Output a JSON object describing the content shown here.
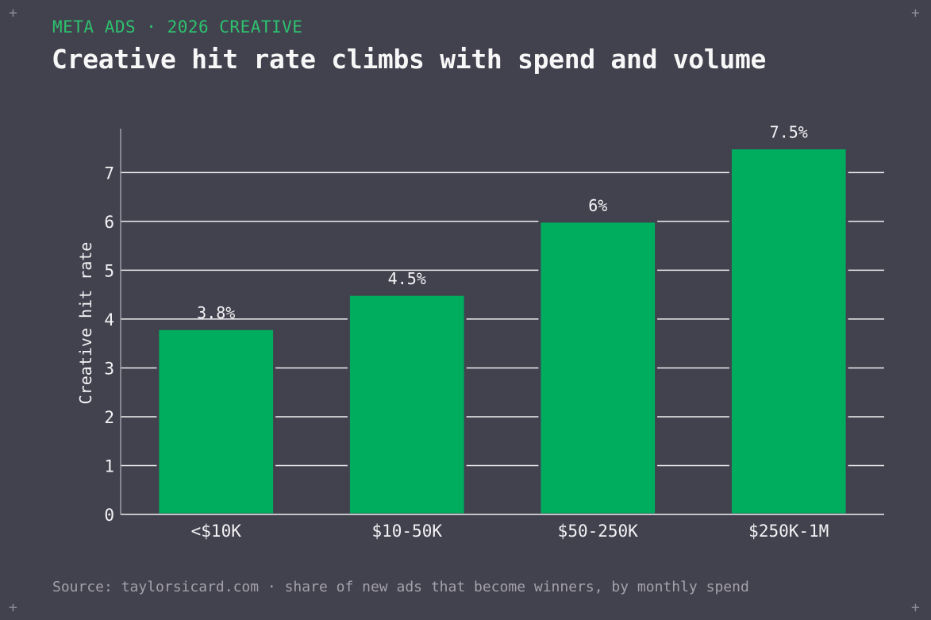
{
  "header": {
    "kicker": "META ADS · 2026 CREATIVE",
    "title": "Creative hit rate climbs with spend and volume"
  },
  "footer": {
    "source": "Source: taylorsicard.com · share of new ads that become winners, by monthly spend"
  },
  "decorations": {
    "corner_mark": "+"
  },
  "colors": {
    "background": "#42414e",
    "bar": "#00ad5f",
    "accent": "#2cc26e",
    "grid": "#f0f0f2",
    "text": "#f3f3f5",
    "muted": "#a3a2ab"
  },
  "chart_data": {
    "type": "bar",
    "categories": [
      "<$10K",
      "$10-50K",
      "$50-250K",
      "$250K-1M"
    ],
    "values": [
      3.8,
      4.5,
      6,
      7.5
    ],
    "data_labels": [
      "3.8%",
      "4.5%",
      "6%",
      "7.5%"
    ],
    "ylabel": "Creative hit rate",
    "xlabel": "",
    "ylim": [
      0,
      7.9
    ],
    "yticks": [
      0,
      1,
      2,
      3,
      4,
      5,
      6,
      7
    ],
    "grid": true,
    "legend": "none"
  }
}
